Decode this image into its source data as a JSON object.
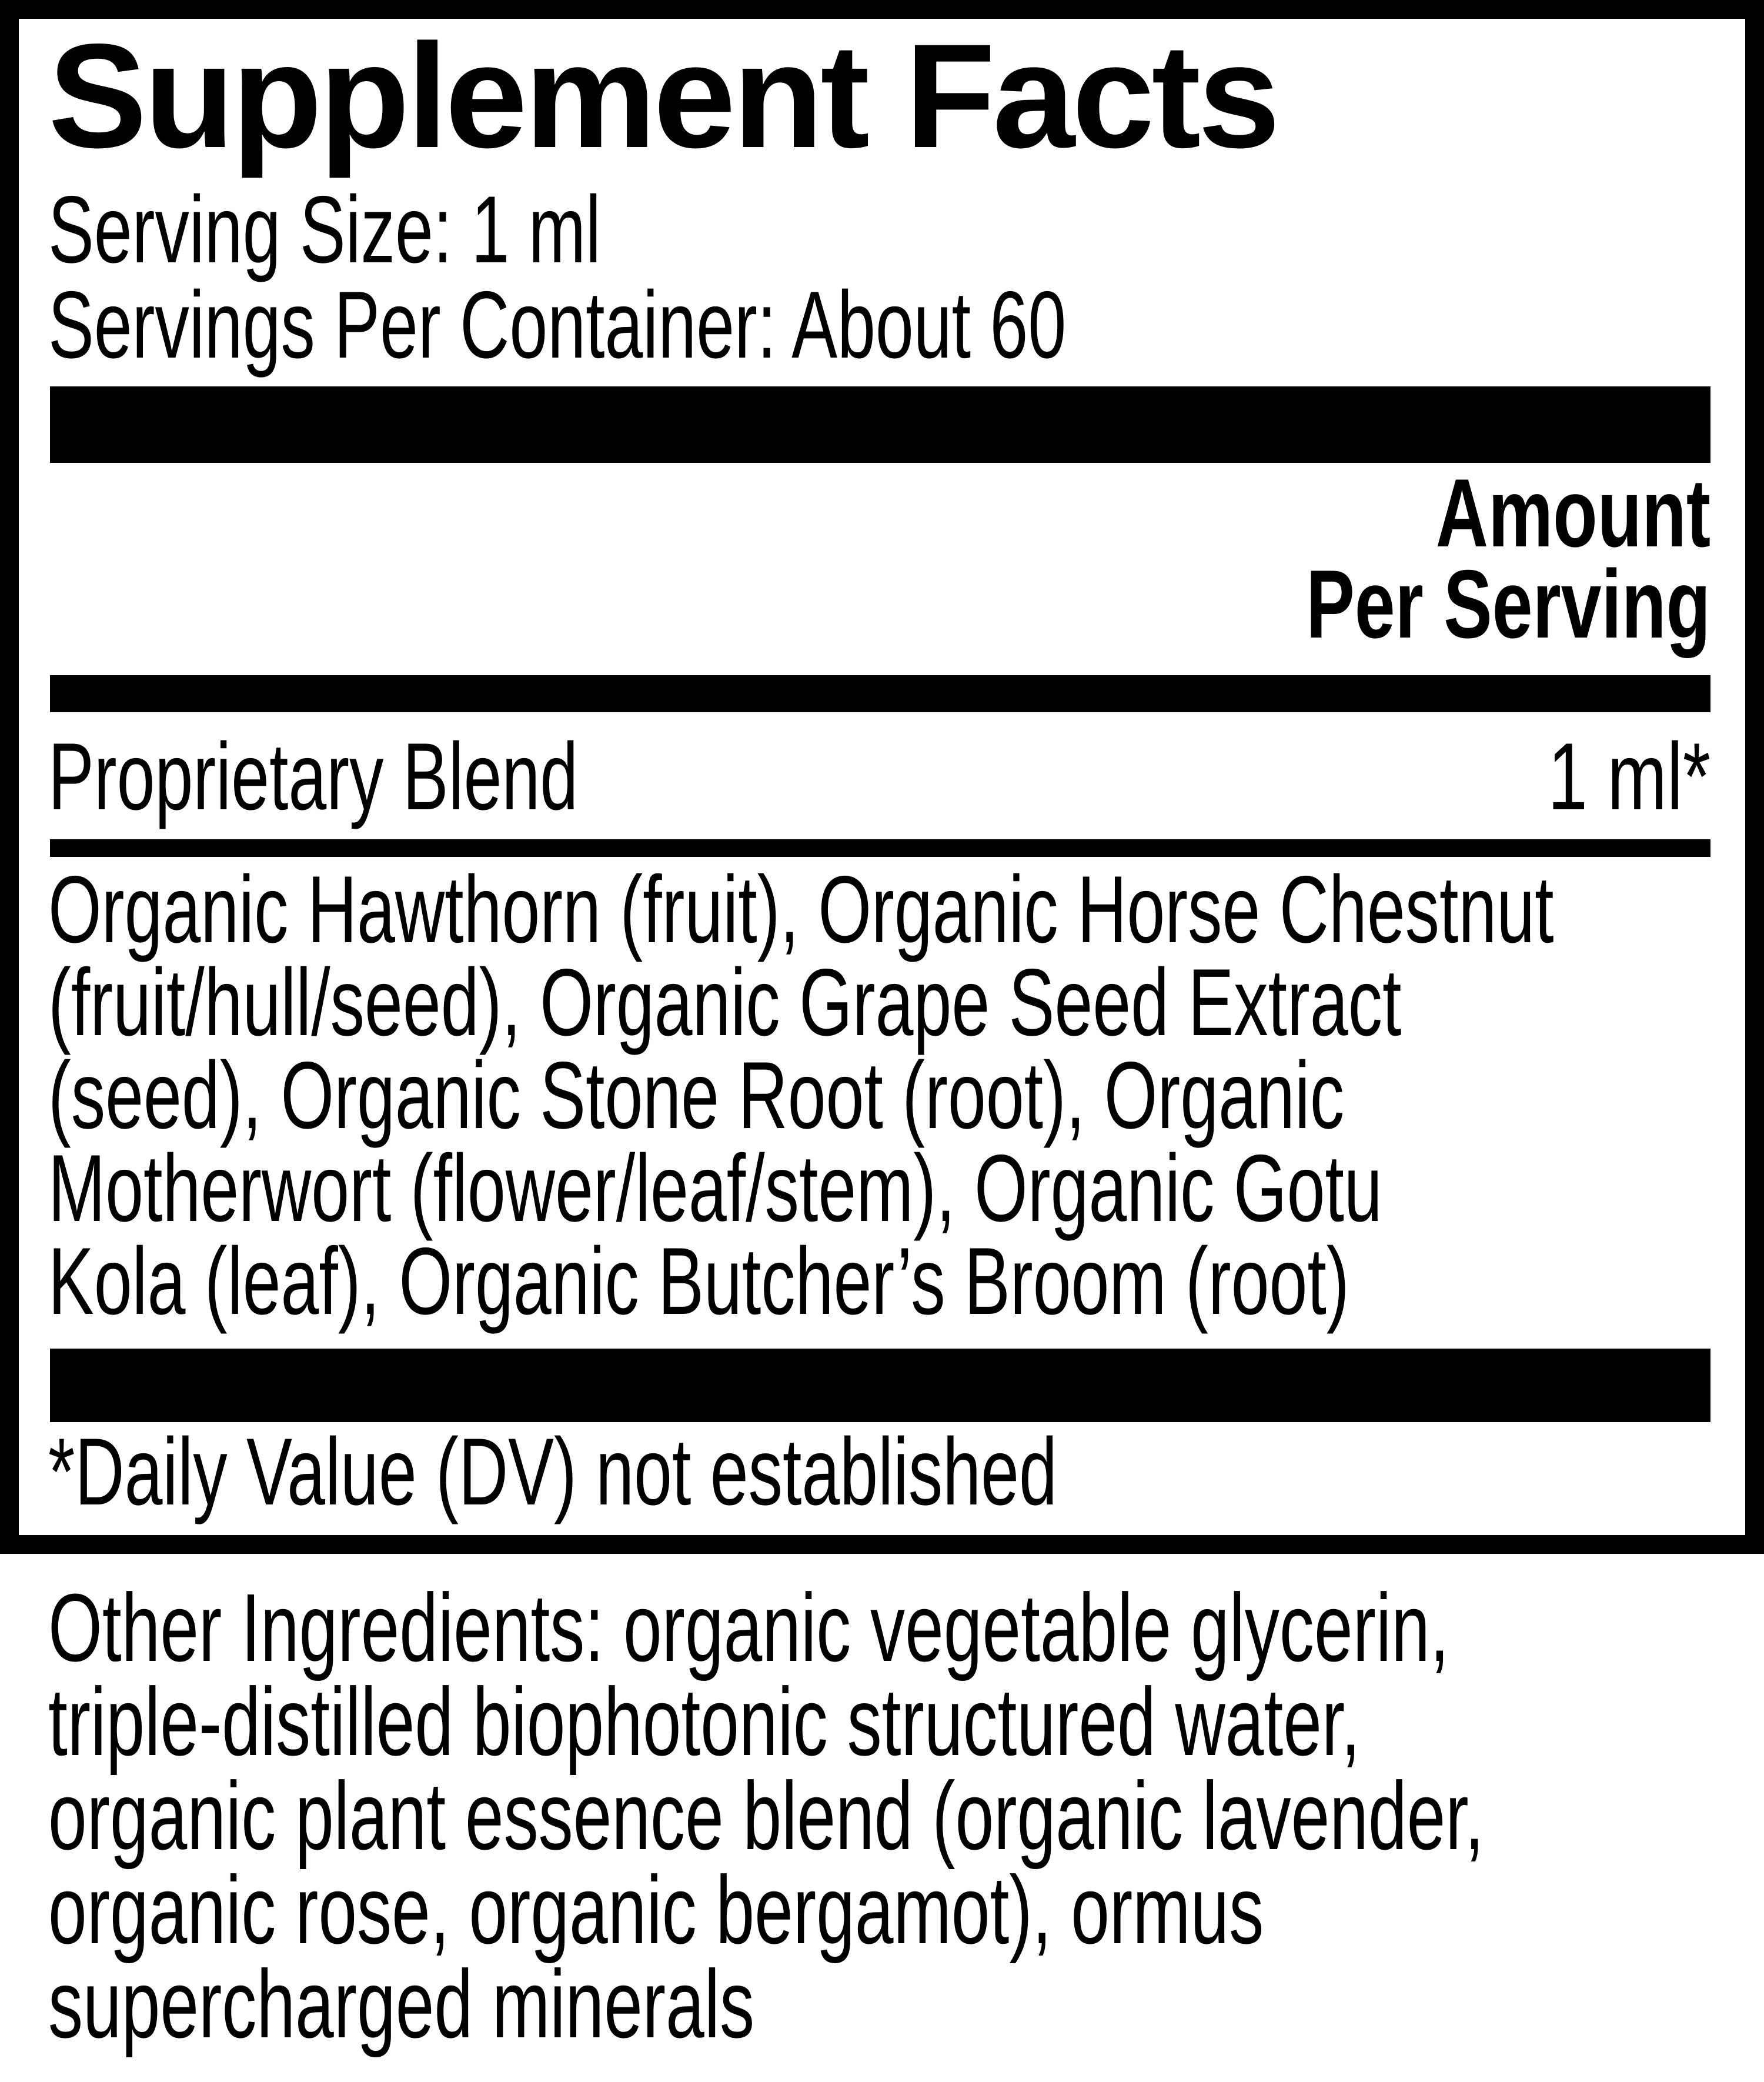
{
  "label": {
    "title": "Supplement Facts",
    "serving_size": "Serving Size: 1 ml",
    "servings_per_container": "Servings Per Container: About 60",
    "amount_header": {
      "line1": "Amount",
      "line2": "Per Serving"
    },
    "proprietary_blend": {
      "name": "Proprietary Blend",
      "amount": "1 ml*"
    },
    "blend_ingredients_lines": [
      "Organic Hawthorn (fruit), Organic Horse Chestnut",
      "(fruit/hull/seed), Organic Grape Seed Extract",
      "(seed), Organic Stone Root (root), Organic",
      "Motherwort (flower/leaf/stem), Organic Gotu",
      "Kola (leaf), Organic Butcher’s Broom (root)"
    ],
    "footnote": "*Daily Value (DV) not established",
    "other_ingredients_lines": [
      "Other Ingredients: organic vegetable glycerin,",
      "triple-distilled biophotonic structured water,",
      "organic plant essence blend (organic lavender,",
      "organic rose, organic bergamot), ormus",
      "supercharged minerals"
    ]
  },
  "colors": {
    "ink": "#000000",
    "paper": "#ffffff"
  }
}
